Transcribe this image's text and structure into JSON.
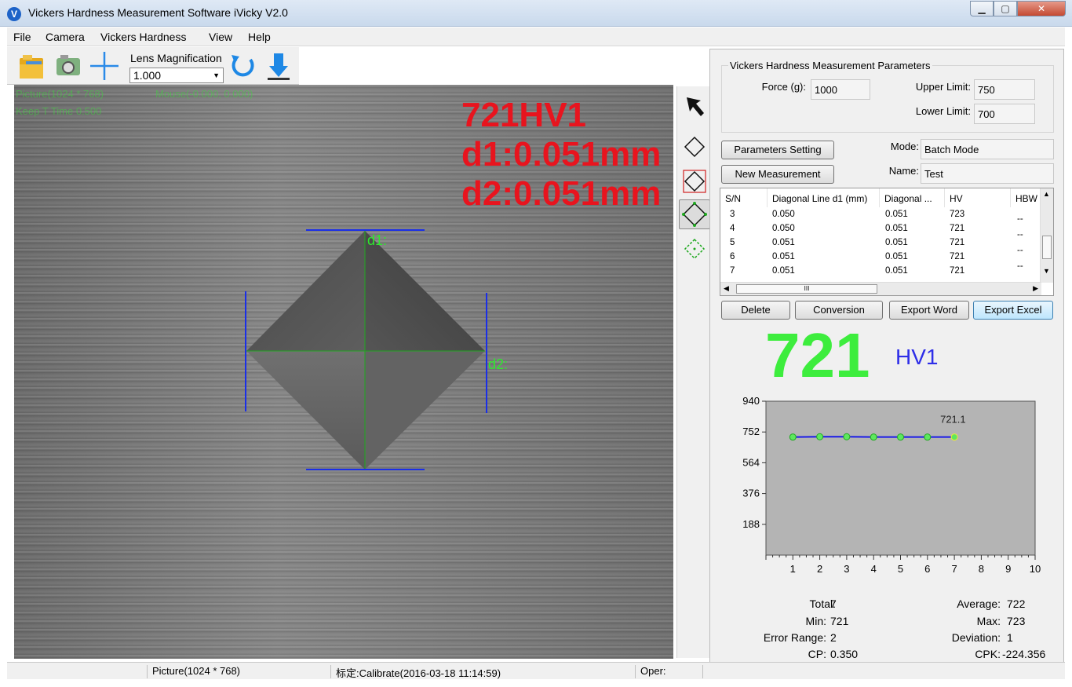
{
  "window": {
    "title": "Vickers Hardness Measurement Software iVicky V2.0",
    "app_icon_letter": "V"
  },
  "menu": [
    "File",
    "Camera",
    "Vickers Hardness",
    "View",
    "Help"
  ],
  "toolbar": {
    "lens_label": "Lens Magnification",
    "lens_value": "1.000",
    "icons": [
      "open-folder-icon",
      "camera-icon",
      "crosshair-icon",
      "refresh-icon",
      "download-icon"
    ]
  },
  "image": {
    "info_picture": "Picture(1024 * 768)",
    "info_mouse": "Mouse(-0.000, 0.000)",
    "info_keep": "Keep T Time 0.500",
    "result_hv": "721HV1",
    "result_d1": "d1:0.051mm",
    "result_d2": "d2:0.051mm",
    "label_d1": "d1:",
    "label_d2": "d2:"
  },
  "side_tools": [
    "pointer-icon",
    "diamond-icon",
    "diamond-box-icon",
    "diamond-points-icon",
    "diamond-dashed-icon"
  ],
  "params": {
    "title": "Vickers Hardness Measurement Parameters",
    "force_label": "Force (g):",
    "force_value": "1000",
    "upper_label": "Upper Limit:",
    "upper_value": "750",
    "lower_label": "Lower Limit:",
    "lower_value": "700",
    "mode_label": "Mode:",
    "mode_value": "Batch Mode",
    "name_label": "Name:",
    "name_value": "Test"
  },
  "buttons": {
    "parameters_setting": "Parameters Setting",
    "new_measurement": "New Measurement",
    "delete": "Delete",
    "conversion": "Conversion",
    "export_word": "Export Word",
    "export_excel": "Export Excel"
  },
  "table": {
    "columns": [
      "S/N",
      "Diagonal Line d1 (mm)",
      "Diagonal ...",
      "HV",
      "HBW"
    ],
    "rows": [
      [
        "3",
        "0.050",
        "0.051",
        "723",
        "--"
      ],
      [
        "4",
        "0.050",
        "0.051",
        "721",
        "--"
      ],
      [
        "5",
        "0.051",
        "0.051",
        "721",
        "--"
      ],
      [
        "6",
        "0.051",
        "0.051",
        "721",
        "--"
      ],
      [
        "7",
        "0.051",
        "0.051",
        "721",
        "--"
      ]
    ],
    "scroll_grip": "III"
  },
  "current": {
    "value": "721",
    "unit": "HV1"
  },
  "chart_data": {
    "type": "line",
    "x": [
      1,
      2,
      3,
      4,
      5,
      6,
      7
    ],
    "values": [
      721,
      723,
      723,
      721,
      721,
      721,
      721
    ],
    "annotation": "721.1",
    "yticks": [
      "940",
      "752",
      "564",
      "376",
      "188"
    ],
    "xticks": [
      "1",
      "2",
      "3",
      "4",
      "5",
      "6",
      "7",
      "8",
      "9",
      "10"
    ],
    "ylim": [
      0,
      940
    ],
    "xlim": [
      0,
      10
    ],
    "line_color": "#1a1ae8",
    "point_color": "#5ee85e",
    "background": "#b4b4b4"
  },
  "stats": {
    "total_label": "Total:",
    "total": "7",
    "min_label": "Min:",
    "min": "721",
    "error_label": "Error Range:",
    "error": "2",
    "cp_label": "CP:",
    "cp": "0.350",
    "avg_label": "Average:",
    "avg": "722",
    "max_label": "Max:",
    "max": "723",
    "dev_label": "Deviation:",
    "dev": "1",
    "cpk_label": "CPK:",
    "cpk": "-224.356"
  },
  "status": {
    "picture": "Picture(1024 * 768)",
    "calibrate": "标定:Calibrate(2016-03-18 11:14:59)",
    "oper": "Oper:"
  }
}
